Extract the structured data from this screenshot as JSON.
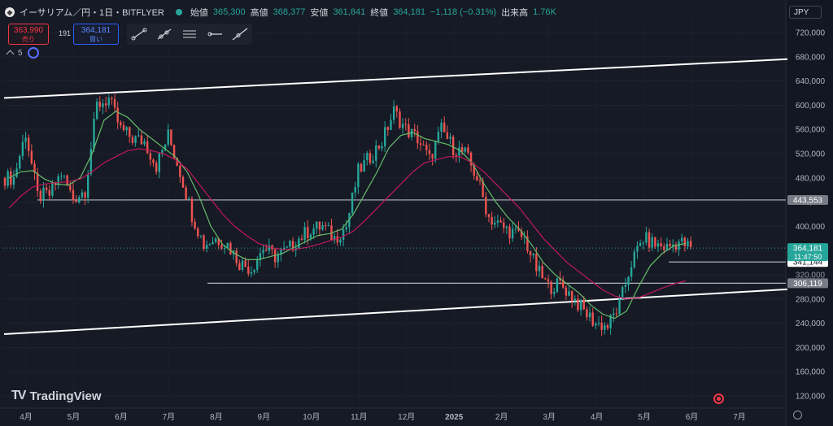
{
  "header": {
    "symbol": "イーサリアム／円・1日・BITFLYER",
    "open_label": "始値",
    "open": "365,300",
    "high_label": "高値",
    "high": "368,377",
    "low_label": "安値",
    "low": "361,841",
    "close_label": "終値",
    "close": "364,181",
    "change": "−1,118 (−0.31%)",
    "volume_label": "出来高",
    "volume": "1.76K"
  },
  "trade": {
    "sell_price": "363,990",
    "sell_label": "売り",
    "spread": "191",
    "buy_price": "364,181",
    "buy_label": "買い"
  },
  "indicator": {
    "count": "5"
  },
  "currency": "JPY",
  "brand": "TradingView",
  "colors": {
    "up": "#26a69a",
    "down": "#ef5350",
    "ma_short": "#66bb6a",
    "ma_long": "#c2185b",
    "background": "#161a25",
    "level": "#b2b5be"
  },
  "icons": [
    "ethereum-icon",
    "market-open-dot",
    "trendline-icon",
    "ray-icon",
    "parallel-channel-icon",
    "horizontal-ray-icon",
    "extended-line-icon",
    "chevron-up-icon",
    "indicator-cycle-icon",
    "settings-icon",
    "record-icon"
  ],
  "chart_data": {
    "type": "candlestick",
    "symbol": "ETH/JPY",
    "interval": "1D",
    "y_axis": {
      "range": [
        100000,
        740000
      ],
      "ticks": [
        120000,
        160000,
        200000,
        240000,
        280000,
        320000,
        360000,
        400000,
        440000,
        480000,
        520000,
        560000,
        600000,
        640000,
        680000,
        720000
      ],
      "tick_labels": [
        "120,000",
        "160,000",
        "200,000",
        "240,000",
        "280,000",
        "320,000",
        "360,000",
        "400,000",
        "440,000",
        "480,000",
        "520,000",
        "560,000",
        "600,000",
        "640,000",
        "680,000",
        "720,000"
      ]
    },
    "x_axis": {
      "labels": [
        "4月",
        "5月",
        "6月",
        "7月",
        "8月",
        "9月",
        "10月",
        "11月",
        "12月",
        "2025",
        "2月",
        "3月",
        "4月",
        "5月",
        "6月",
        "7月"
      ]
    },
    "closes": [
      {
        "label": "4月",
        "value": 480000
      },
      {
        "label": "",
        "value": 555000
      },
      {
        "label": "",
        "value": 450000
      },
      {
        "label": "",
        "value": 452000
      },
      {
        "label": "5月",
        "value": 488000
      },
      {
        "label": "",
        "value": 445000
      },
      {
        "label": "",
        "value": 460000
      },
      {
        "label": "",
        "value": 600000
      },
      {
        "label": "6月",
        "value": 610000
      },
      {
        "label": "",
        "value": 560000
      },
      {
        "label": "",
        "value": 545000
      },
      {
        "label": "",
        "value": 540000
      },
      {
        "label": "7月",
        "value": 500000
      },
      {
        "label": "",
        "value": 550000
      },
      {
        "label": "",
        "value": 490000
      },
      {
        "label": "",
        "value": 420000
      },
      {
        "label": "8月",
        "value": 370000
      },
      {
        "label": "",
        "value": 380000
      },
      {
        "label": "",
        "value": 370000
      },
      {
        "label": "",
        "value": 340000
      },
      {
        "label": "9月",
        "value": 330000
      },
      {
        "label": "",
        "value": 365000
      },
      {
        "label": "",
        "value": 350000
      },
      {
        "label": "",
        "value": 360000
      },
      {
        "label": "10月",
        "value": 380000
      },
      {
        "label": "",
        "value": 395000
      },
      {
        "label": "",
        "value": 400000
      },
      {
        "label": "",
        "value": 380000
      },
      {
        "label": "11月",
        "value": 400000
      },
      {
        "label": "",
        "value": 490000
      },
      {
        "label": "",
        "value": 515000
      },
      {
        "label": "",
        "value": 540000
      },
      {
        "label": "12月",
        "value": 590000
      },
      {
        "label": "",
        "value": 560000
      },
      {
        "label": "",
        "value": 545000
      },
      {
        "label": "",
        "value": 510000
      },
      {
        "label": "2025",
        "value": 560000
      },
      {
        "label": "",
        "value": 530000
      },
      {
        "label": "",
        "value": 520000
      },
      {
        "label": "",
        "value": 480000
      },
      {
        "label": "2月",
        "value": 415000
      },
      {
        "label": "",
        "value": 400000
      },
      {
        "label": "",
        "value": 390000
      },
      {
        "label": "",
        "value": 380000
      },
      {
        "label": "3月",
        "value": 330000
      },
      {
        "label": "",
        "value": 300000
      },
      {
        "label": "",
        "value": 305000
      },
      {
        "label": "",
        "value": 285000
      },
      {
        "label": "4月",
        "value": 260000
      },
      {
        "label": "",
        "value": 240000
      },
      {
        "label": "",
        "value": 235000
      },
      {
        "label": "",
        "value": 270000
      },
      {
        "label": "5月",
        "value": 340000
      },
      {
        "label": "",
        "value": 380000
      },
      {
        "label": "",
        "value": 370000
      },
      {
        "label": "",
        "value": 365000
      },
      {
        "label": "6月",
        "value": 375000
      },
      {
        "label": "",
        "value": 364181
      }
    ],
    "horizontal_levels": [
      {
        "value": 443553,
        "label": "443,553"
      },
      {
        "value": 341144,
        "label": "341,144"
      },
      {
        "value": 306119,
        "label": "306,119"
      }
    ],
    "channel_lines": [
      {
        "from": {
          "x": "4月 2024",
          "y": 612000
        },
        "to": {
          "x": "7月 2025",
          "y": 676000
        }
      },
      {
        "from": {
          "x": "4月 2024",
          "y": 222000
        },
        "to": {
          "x": "7月 2025",
          "y": 296000
        }
      }
    ],
    "last_price": {
      "value": 364181,
      "label": "364,181",
      "countdown": "11:47:50"
    },
    "axis_extra_label": "320,000",
    "moving_averages": [
      {
        "color": "#66bb6a",
        "values": [
          480000,
          490000,
          492000,
          478000,
          470000,
          468000,
          480000,
          520000,
          575000,
          590000,
          580000,
          560000,
          545000,
          530000,
          515000,
          490000,
          450000,
          400000,
          370000,
          355000,
          345000,
          345000,
          350000,
          355000,
          365000,
          375000,
          385000,
          388000,
          395000,
          420000,
          455000,
          490000,
          530000,
          550000,
          555000,
          545000,
          540000,
          535000,
          525000,
          505000,
          470000,
          440000,
          415000,
          395000,
          370000,
          340000,
          320000,
          305000,
          290000,
          270000,
          255000,
          248000,
          260000,
          300000,
          335000,
          355000,
          368000,
          372000
        ]
      },
      {
        "color": "#c2185b",
        "values": [
          430000,
          450000,
          465000,
          470000,
          472000,
          474000,
          478000,
          490000,
          505000,
          515000,
          525000,
          528000,
          525000,
          520000,
          510000,
          495000,
          470000,
          445000,
          420000,
          400000,
          385000,
          372000,
          365000,
          362000,
          362000,
          365000,
          370000,
          376000,
          382000,
          392000,
          410000,
          430000,
          450000,
          470000,
          490000,
          505000,
          510000,
          515000,
          515000,
          505000,
          490000,
          470000,
          450000,
          430000,
          405000,
          380000,
          360000,
          340000,
          325000,
          310000,
          295000,
          285000,
          280000,
          282000,
          290000,
          298000,
          305000,
          310000
        ]
      }
    ]
  }
}
